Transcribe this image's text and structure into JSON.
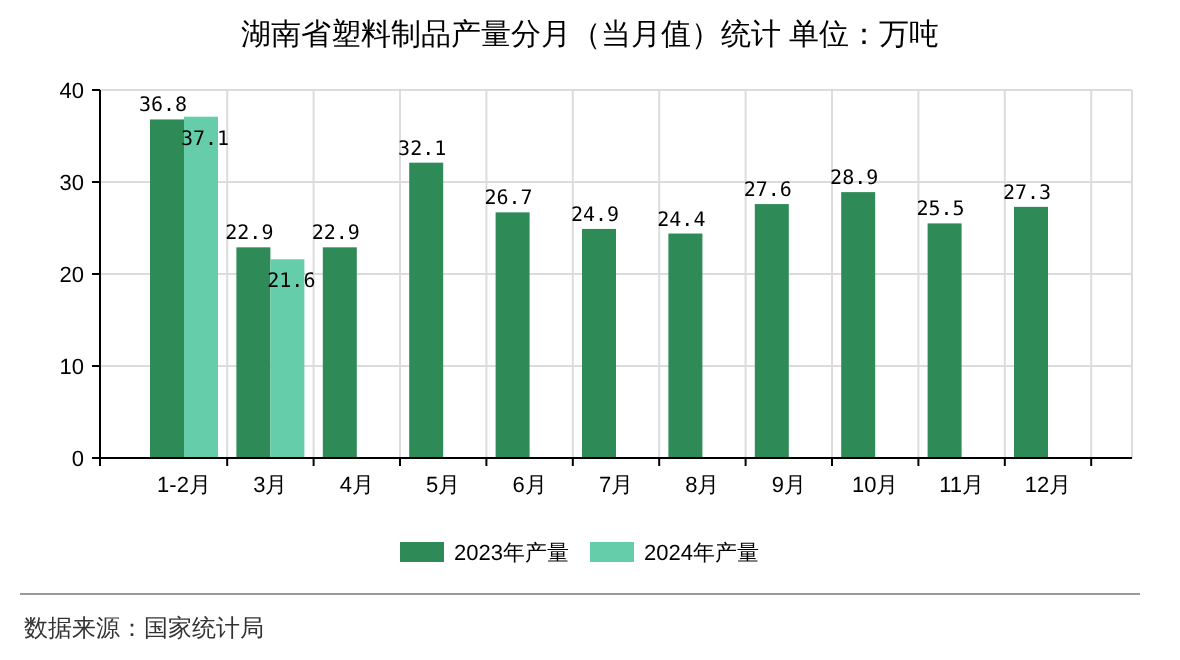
{
  "chart_data": {
    "type": "bar",
    "title": "湖南省塑料制品产量分月（当月值）统计 单位：万吨",
    "categories": [
      "1-2月",
      "3月",
      "4月",
      "5月",
      "6月",
      "7月",
      "8月",
      "9月",
      "10月",
      "11月",
      "12月"
    ],
    "series": [
      {
        "name": "2023年产量",
        "color": "#2e8b57",
        "values": [
          36.8,
          22.9,
          22.9,
          32.1,
          26.7,
          24.9,
          24.4,
          27.6,
          28.9,
          25.5,
          27.3
        ]
      },
      {
        "name": "2024年产量",
        "color": "#66cdaa",
        "values": [
          37.1,
          21.6,
          null,
          null,
          null,
          null,
          null,
          null,
          null,
          null,
          null
        ]
      }
    ],
    "ylim": [
      0,
      40
    ],
    "yticks": [
      0,
      10,
      20,
      30,
      40
    ],
    "grid": true,
    "legend": "bottom",
    "data_labels": true,
    "annotations": [
      "数据来源：国家统计局"
    ]
  }
}
